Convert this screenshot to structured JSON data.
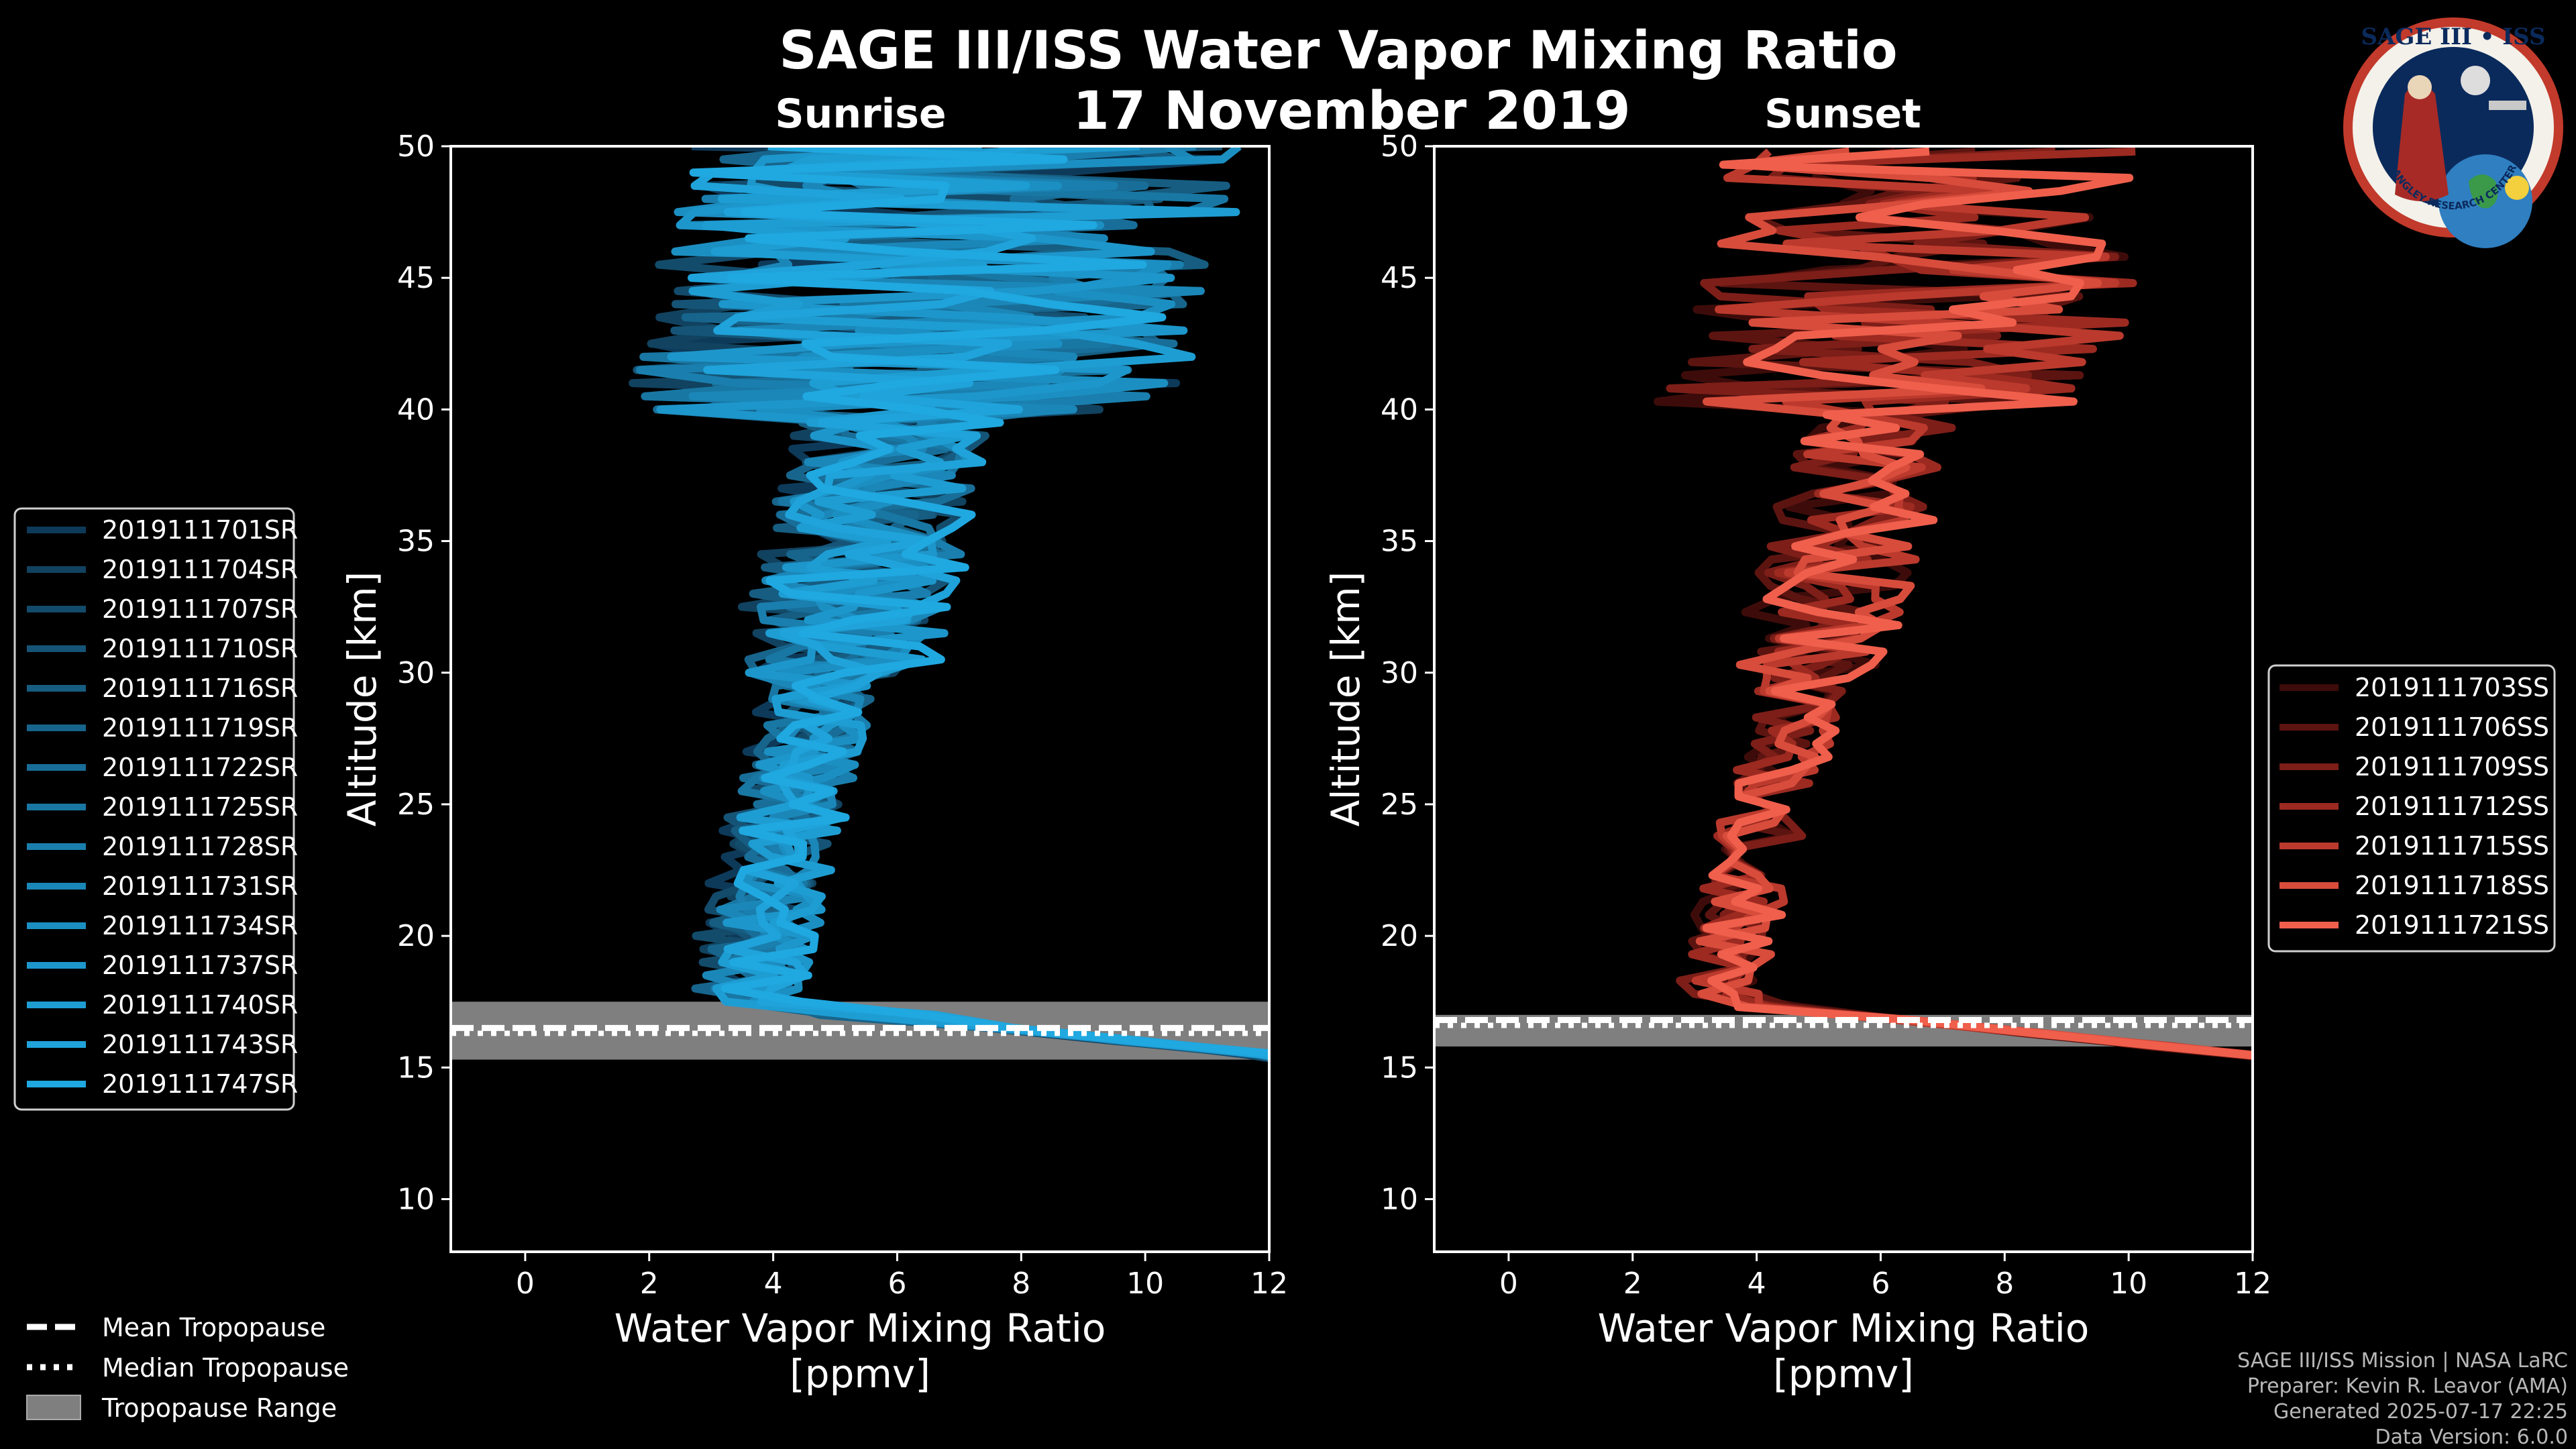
{
  "title": "SAGE III/ISS Water Vapor Mixing Ratio",
  "date": "17 November 2019",
  "badge": {
    "line1": "SAGE III • ISS",
    "ring": "BALL • NASA LANGLEY RESEARCH CENTER • TAS-I • ESA"
  },
  "credits": [
    "SAGE III/ISS Mission | NASA LaRC",
    "Preparer: Kevin R. Leavor (AMA)",
    "Generated 2025-07-17 22:25",
    "Data Version: 6.0.0"
  ],
  "bottom_legend": [
    {
      "label": "Mean Tropopause",
      "style": "dashed"
    },
    {
      "label": "Median Tropopause",
      "style": "dotted"
    },
    {
      "label": "Tropopause Range",
      "style": "patch"
    }
  ],
  "colors": {
    "sunrise": "#1f90d6",
    "sunset": "#ef5f4c",
    "range": "#7f7f7f"
  },
  "chart_data": [
    {
      "type": "line",
      "subtitle": "Sunrise",
      "xlabel": "Water Vapor Mixing Ratio\n[ppmv]",
      "ylabel": "Altitude [km]",
      "xlim": [
        -1.2,
        12
      ],
      "ylim": [
        8,
        50
      ],
      "xticks": [
        0,
        2,
        4,
        6,
        8,
        10,
        12
      ],
      "yticks": [
        10,
        15,
        20,
        25,
        30,
        35,
        40,
        45,
        50
      ],
      "tropopause": {
        "mean": 16.3,
        "median": 16.3,
        "range": [
          15.3,
          17.5
        ]
      },
      "series": [
        {
          "name": "2019111701SR",
          "color": "#0e3a5a"
        },
        {
          "name": "2019111704SR",
          "color": "#11425f"
        },
        {
          "name": "2019111707SR",
          "color": "#134b6b"
        },
        {
          "name": "2019111710SR",
          "color": "#155476"
        },
        {
          "name": "2019111716SR",
          "color": "#165d81"
        },
        {
          "name": "2019111719SR",
          "color": "#17658c"
        },
        {
          "name": "2019111722SR",
          "color": "#186e98"
        },
        {
          "name": "2019111725SR",
          "color": "#1977a3"
        },
        {
          "name": "2019111728SR",
          "color": "#1a7fae"
        },
        {
          "name": "2019111731SR",
          "color": "#1b87b8"
        },
        {
          "name": "2019111734SR",
          "color": "#1c8fc2"
        },
        {
          "name": "2019111737SR",
          "color": "#1d96cb"
        },
        {
          "name": "2019111740SR",
          "color": "#1e9dd3"
        },
        {
          "name": "2019111743SR",
          "color": "#1fa3da"
        },
        {
          "name": "2019111747SR",
          "color": "#20a8e0"
        }
      ]
    },
    {
      "type": "line",
      "subtitle": "Sunset",
      "xlabel": "Water Vapor Mixing Ratio\n[ppmv]",
      "ylabel": "Altitude [km]",
      "xlim": [
        -1.2,
        12
      ],
      "ylim": [
        8,
        50
      ],
      "xticks": [
        0,
        2,
        4,
        6,
        8,
        10,
        12
      ],
      "yticks": [
        10,
        15,
        20,
        25,
        30,
        35,
        40,
        45,
        50
      ],
      "tropopause": {
        "mean": 16.6,
        "median": 16.6,
        "range": [
          15.8,
          17.0
        ]
      },
      "series": [
        {
          "name": "2019111703SS",
          "color": "#3d0c0a"
        },
        {
          "name": "2019111706SS",
          "color": "#5c1410"
        },
        {
          "name": "2019111709SS",
          "color": "#7d1e18"
        },
        {
          "name": "2019111712SS",
          "color": "#9c2a21"
        },
        {
          "name": "2019111715SS",
          "color": "#bb3a2d"
        },
        {
          "name": "2019111718SS",
          "color": "#d84c3c"
        },
        {
          "name": "2019111721SS",
          "color": "#ef5f4c"
        }
      ]
    }
  ]
}
